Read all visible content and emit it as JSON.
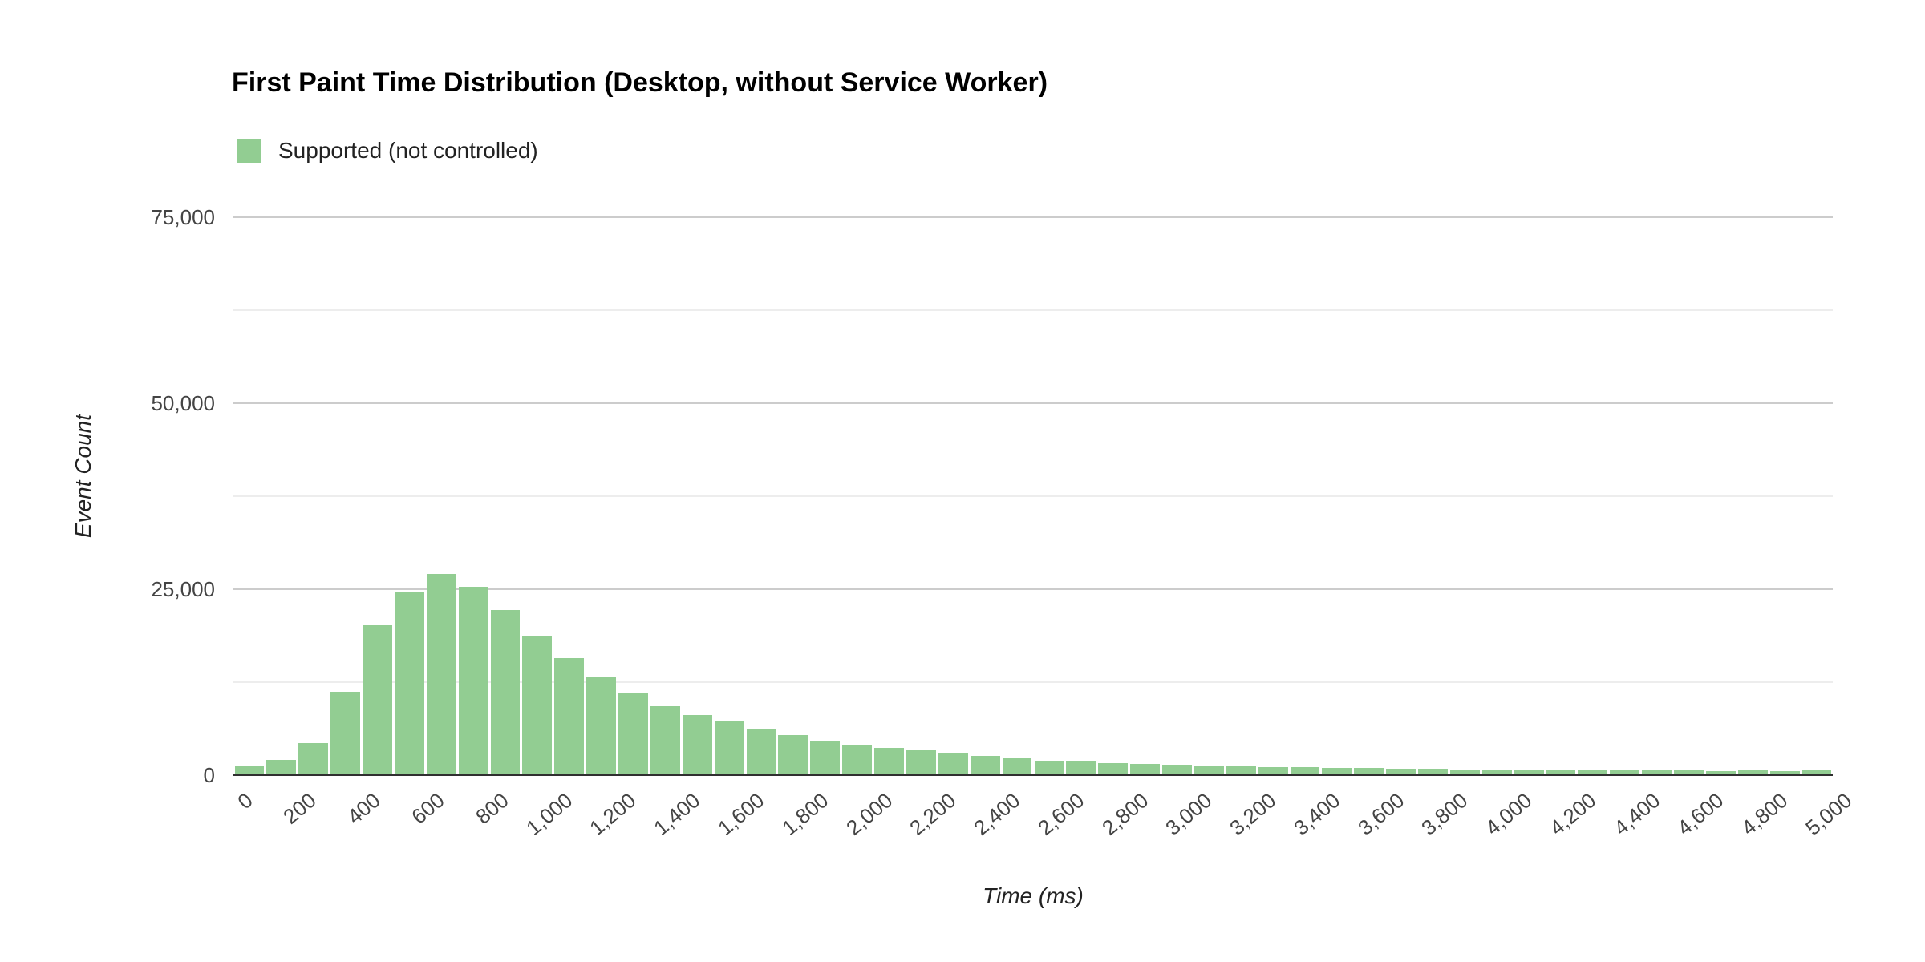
{
  "title": "First Paint Time Distribution (Desktop, without Service Worker)",
  "legend": {
    "label": "Supported (not controlled)",
    "position": "top-left"
  },
  "y_axis": {
    "title": "Event Count",
    "max": 75000,
    "major_interval": 25000,
    "minor_interval": 12500,
    "tick_labels": [
      {
        "value": 0,
        "label": "0"
      },
      {
        "value": 25000,
        "label": "25,000"
      },
      {
        "value": 50000,
        "label": "50,000"
      },
      {
        "value": 75000,
        "label": "75,000"
      }
    ]
  },
  "x_axis": {
    "title": "Time (ms)",
    "min": 0,
    "max": 5000,
    "tick_interval": 200,
    "tick_labels": [
      "0",
      "200",
      "400",
      "600",
      "800",
      "1,000",
      "1,200",
      "1,400",
      "1,600",
      "1,800",
      "2,000",
      "2,200",
      "2,400",
      "2,600",
      "2,800",
      "3,000",
      "3,200",
      "3,400",
      "3,600",
      "3,800",
      "4,000",
      "4,200",
      "4,400",
      "4,600",
      "4,800",
      "5,000"
    ]
  },
  "chart_data": {
    "type": "bar",
    "subtype": "histogram",
    "title": "First Paint Time Distribution (Desktop, without Service Worker)",
    "xlabel": "Time (ms)",
    "ylabel": "Event Count",
    "xlim": [
      0,
      5000
    ],
    "ylim": [
      0,
      75000
    ],
    "grid": "horizontal-only",
    "legend_position": "top-left",
    "series_name": "Supported (not controlled)",
    "bin_width_ms": 100,
    "bin_start_ms": 0,
    "values": [
      1300,
      2100,
      4300,
      11200,
      20100,
      24700,
      27000,
      25300,
      22200,
      18700,
      15700,
      13200,
      11100,
      9300,
      8050,
      7250,
      6300,
      5400,
      4600,
      4100,
      3700,
      3300,
      3050,
      2600,
      2350,
      1950,
      1900,
      1650,
      1500,
      1450,
      1300,
      1150,
      1100,
      1050,
      1000,
      950,
      900,
      850,
      800,
      780,
      750,
      700,
      720,
      650,
      620,
      650,
      560,
      700,
      520,
      600
    ]
  },
  "colors": {
    "bar": "#92cd92",
    "major_gridline": "#cccccc",
    "minor_gridline": "#ededed",
    "baseline": "#2f2f2f",
    "axis_label": "#444444",
    "title": "#000000"
  }
}
